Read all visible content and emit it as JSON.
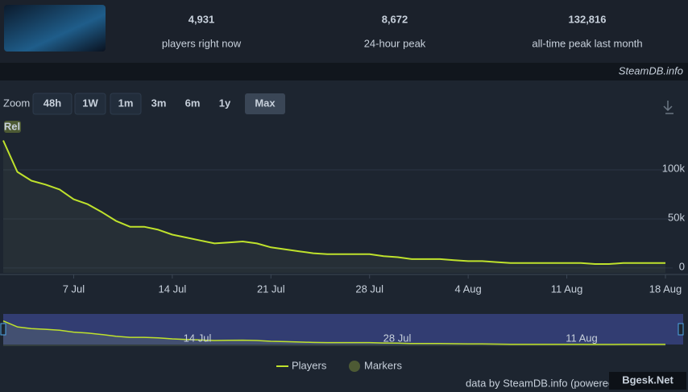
{
  "header": {
    "stats": [
      {
        "value": "4,931",
        "label": "players right now"
      },
      {
        "value": "8,672",
        "label": "24-hour peak"
      },
      {
        "value": "132,816",
        "label": "all-time peak last month"
      }
    ],
    "source": "SteamDB.info"
  },
  "zoom": {
    "label": "Zoom",
    "buttons": [
      "48h",
      "1W",
      "1m",
      "3m",
      "6m",
      "1y",
      "Max"
    ]
  },
  "chart_data": {
    "type": "line",
    "x": [
      "2 Jul",
      "3 Jul",
      "4 Jul",
      "5 Jul",
      "6 Jul",
      "7 Jul",
      "8 Jul",
      "9 Jul",
      "10 Jul",
      "11 Jul",
      "12 Jul",
      "13 Jul",
      "14 Jul",
      "15 Jul",
      "16 Jul",
      "17 Jul",
      "18 Jul",
      "19 Jul",
      "20 Jul",
      "21 Jul",
      "22 Jul",
      "23 Jul",
      "24 Jul",
      "25 Jul",
      "26 Jul",
      "27 Jul",
      "28 Jul",
      "29 Jul",
      "30 Jul",
      "31 Jul",
      "1 Aug",
      "2 Aug",
      "3 Aug",
      "4 Aug",
      "5 Aug",
      "6 Aug",
      "7 Aug",
      "8 Aug",
      "9 Aug",
      "10 Aug",
      "11 Aug",
      "12 Aug",
      "13 Aug",
      "14 Aug",
      "15 Aug",
      "16 Aug",
      "17 Aug",
      "18 Aug"
    ],
    "series": [
      {
        "name": "Players",
        "color": "#bfe22c",
        "values": [
          130000,
          98000,
          89000,
          85000,
          80000,
          70000,
          65000,
          57000,
          48000,
          42000,
          42000,
          39000,
          34000,
          31000,
          28000,
          25000,
          26000,
          27000,
          25000,
          21000,
          19000,
          17000,
          15000,
          14000,
          14000,
          14000,
          14000,
          12000,
          11000,
          9000,
          9000,
          9000,
          8000,
          7000,
          7000,
          6000,
          5000,
          5000,
          5000,
          5000,
          5000,
          5000,
          4000,
          4000,
          5000,
          5000,
          5000,
          5000
        ]
      }
    ],
    "xticks": [
      "7 Jul",
      "14 Jul",
      "21 Jul",
      "28 Jul",
      "4 Aug",
      "11 Aug",
      "18 Aug"
    ],
    "ylim": [
      -5000,
      146000
    ],
    "yticks": [
      0,
      {
        "value": 50000,
        "label": "50k"
      },
      {
        "value": 100000,
        "label": "100k"
      }
    ],
    "annotations": [
      "Rel"
    ],
    "legend": [
      "Players",
      "Markers"
    ],
    "marker_color": "#4d5a34"
  },
  "navigator": {
    "labels": [
      "14 Jul",
      "28 Jul",
      "11 Aug"
    ]
  },
  "footer": {
    "text": "data by SteamDB.info (powered by",
    "watermark": "Bgesk.Net"
  }
}
